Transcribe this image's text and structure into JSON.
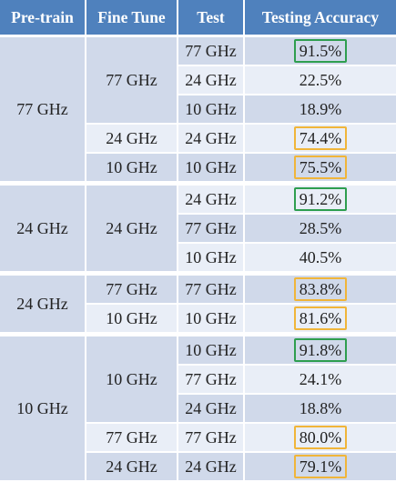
{
  "headers": {
    "pretrain": "Pre-train",
    "finetune": "Fine Tune",
    "test": "Test",
    "accuracy": "Testing Accuracy"
  },
  "rows": [
    {
      "pretrain": "77 GHz",
      "finetune": "77 GHz",
      "test": "77 GHz",
      "accuracy": "91.5%",
      "highlight": "green"
    },
    {
      "test": "24 GHz",
      "accuracy": "22.5%",
      "highlight": "none"
    },
    {
      "test": "10 GHz",
      "accuracy": "18.9%",
      "highlight": "none"
    },
    {
      "finetune": "24 GHz",
      "test": "24 GHz",
      "accuracy": "74.4%",
      "highlight": "orange"
    },
    {
      "finetune": "10 GHz",
      "test": "10 GHz",
      "accuracy": "75.5%",
      "highlight": "orange"
    },
    {
      "pretrain": "24 GHz",
      "finetune": "24 GHz",
      "test": "24 GHz",
      "accuracy": "91.2%",
      "highlight": "green"
    },
    {
      "test": "77 GHz",
      "accuracy": "28.5%",
      "highlight": "none"
    },
    {
      "test": "10 GHz",
      "accuracy": "40.5%",
      "highlight": "none"
    },
    {
      "pretrain": "24 GHz",
      "finetune": "77 GHz",
      "test": "77 GHz",
      "accuracy": "83.8%",
      "highlight": "orange"
    },
    {
      "finetune": "10 GHz",
      "test": "10 GHz",
      "accuracy": "81.6%",
      "highlight": "orange"
    },
    {
      "pretrain": "10 GHz",
      "finetune": "10 GHz",
      "test": "10 GHz",
      "accuracy": "91.8%",
      "highlight": "green"
    },
    {
      "test": "77 GHz",
      "accuracy": "24.1%",
      "highlight": "none"
    },
    {
      "test": "24 GHz",
      "accuracy": "18.8%",
      "highlight": "none"
    },
    {
      "finetune": "77 GHz",
      "test": "77 GHz",
      "accuracy": "80.0%",
      "highlight": "orange"
    },
    {
      "finetune": "24 GHz",
      "test": "24 GHz",
      "accuracy": "79.1%",
      "highlight": "orange"
    }
  ],
  "colors": {
    "header_bg": "#4f81bd",
    "row_dark": "#d0d9ea",
    "row_light": "#e9eef7",
    "highlight_green": "#2e9e4f",
    "highlight_orange": "#f0b53a"
  }
}
